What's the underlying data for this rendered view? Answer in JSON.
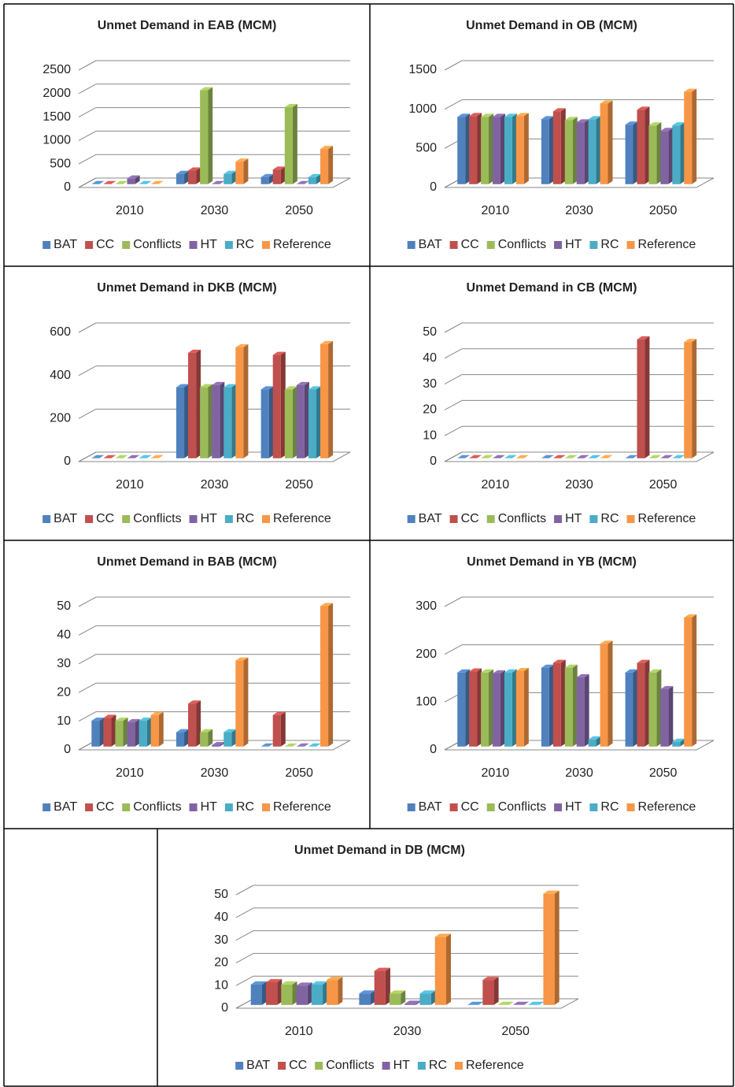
{
  "chart_data": [
    {
      "type": "bar",
      "title": "Unmet Demand in EAB (MCM)",
      "categories": [
        "2010",
        "2030",
        "2050"
      ],
      "ylim": [
        0,
        2500
      ],
      "yticks": [
        0,
        500,
        1000,
        1500,
        2000,
        2500
      ],
      "legend": "bottom",
      "series": [
        {
          "name": "BAT",
          "color": "#4f81bd",
          "values": [
            0,
            220,
            150
          ]
        },
        {
          "name": "CC",
          "color": "#c0504d",
          "values": [
            0,
            290,
            310
          ]
        },
        {
          "name": "Conflicts",
          "color": "#9bbb59",
          "values": [
            0,
            2000,
            1640
          ]
        },
        {
          "name": "HT",
          "color": "#8064a2",
          "values": [
            120,
            0,
            0
          ]
        },
        {
          "name": "RC",
          "color": "#4bacc6",
          "values": [
            0,
            220,
            150
          ]
        },
        {
          "name": "Reference",
          "color": "#f79646",
          "values": [
            0,
            480,
            750
          ]
        }
      ]
    },
    {
      "type": "bar",
      "title": "Unmet Demand in OB (MCM)",
      "categories": [
        "2010",
        "2030",
        "2050"
      ],
      "ylim": [
        0,
        1500
      ],
      "yticks": [
        0,
        500,
        1000,
        1500
      ],
      "legend": "bottom",
      "series": [
        {
          "name": "BAT",
          "color": "#4f81bd",
          "values": [
            860,
            830,
            760
          ]
        },
        {
          "name": "CC",
          "color": "#c0504d",
          "values": [
            870,
            930,
            950
          ]
        },
        {
          "name": "Conflicts",
          "color": "#9bbb59",
          "values": [
            860,
            820,
            750
          ]
        },
        {
          "name": "HT",
          "color": "#8064a2",
          "values": [
            860,
            790,
            680
          ]
        },
        {
          "name": "RC",
          "color": "#4bacc6",
          "values": [
            860,
            830,
            750
          ]
        },
        {
          "name": "Reference",
          "color": "#f79646",
          "values": [
            870,
            1030,
            1180
          ]
        }
      ]
    },
    {
      "type": "bar",
      "title": "Unmet Demand in DKB (MCM)",
      "categories": [
        "2010",
        "2030",
        "2050"
      ],
      "ylim": [
        0,
        600
      ],
      "yticks": [
        0,
        200,
        400,
        600
      ],
      "legend": "bottom",
      "series": [
        {
          "name": "BAT",
          "color": "#4f81bd",
          "values": [
            0,
            330,
            320
          ]
        },
        {
          "name": "CC",
          "color": "#c0504d",
          "values": [
            0,
            490,
            480
          ]
        },
        {
          "name": "Conflicts",
          "color": "#9bbb59",
          "values": [
            0,
            330,
            320
          ]
        },
        {
          "name": "HT",
          "color": "#8064a2",
          "values": [
            0,
            340,
            340
          ]
        },
        {
          "name": "RC",
          "color": "#4bacc6",
          "values": [
            0,
            330,
            320
          ]
        },
        {
          "name": "Reference",
          "color": "#f79646",
          "values": [
            0,
            515,
            530
          ]
        }
      ]
    },
    {
      "type": "bar",
      "title": "Unmet Demand in CB (MCM)",
      "categories": [
        "2010",
        "2030",
        "2050"
      ],
      "ylim": [
        0,
        50
      ],
      "yticks": [
        0,
        10,
        20,
        30,
        40,
        50
      ],
      "legend": "bottom",
      "series": [
        {
          "name": "BAT",
          "color": "#4f81bd",
          "values": [
            0,
            0,
            0
          ]
        },
        {
          "name": "CC",
          "color": "#c0504d",
          "values": [
            0,
            0,
            46
          ]
        },
        {
          "name": "Conflicts",
          "color": "#9bbb59",
          "values": [
            0,
            0,
            0
          ]
        },
        {
          "name": "HT",
          "color": "#8064a2",
          "values": [
            0,
            0,
            0
          ]
        },
        {
          "name": "RC",
          "color": "#4bacc6",
          "values": [
            0,
            0,
            0
          ]
        },
        {
          "name": "Reference",
          "color": "#f79646",
          "values": [
            0,
            0,
            45
          ]
        }
      ]
    },
    {
      "type": "bar",
      "title": "Unmet Demand in BAB (MCM)",
      "categories": [
        "2010",
        "2030",
        "2050"
      ],
      "ylim": [
        0,
        50
      ],
      "yticks": [
        0,
        10,
        20,
        30,
        40,
        50
      ],
      "legend": "bottom",
      "series": [
        {
          "name": "BAT",
          "color": "#4f81bd",
          "values": [
            9,
            5,
            0
          ]
        },
        {
          "name": "CC",
          "color": "#c0504d",
          "values": [
            10,
            15,
            11
          ]
        },
        {
          "name": "Conflicts",
          "color": "#9bbb59",
          "values": [
            9,
            5,
            0
          ]
        },
        {
          "name": "HT",
          "color": "#8064a2",
          "values": [
            8.5,
            0.5,
            0
          ]
        },
        {
          "name": "RC",
          "color": "#4bacc6",
          "values": [
            9,
            5,
            0
          ]
        },
        {
          "name": "Reference",
          "color": "#f79646",
          "values": [
            11,
            30,
            49
          ]
        }
      ]
    },
    {
      "type": "bar",
      "title": "Unmet Demand in YB (MCM)",
      "categories": [
        "2010",
        "2030",
        "2050"
      ],
      "ylim": [
        0,
        300
      ],
      "yticks": [
        0,
        100,
        200,
        300
      ],
      "legend": "bottom",
      "series": [
        {
          "name": "BAT",
          "color": "#4f81bd",
          "values": [
            155,
            165,
            155
          ]
        },
        {
          "name": "CC",
          "color": "#c0504d",
          "values": [
            157,
            175,
            175
          ]
        },
        {
          "name": "Conflicts",
          "color": "#9bbb59",
          "values": [
            155,
            165,
            155
          ]
        },
        {
          "name": "HT",
          "color": "#8064a2",
          "values": [
            153,
            145,
            120
          ]
        },
        {
          "name": "RC",
          "color": "#4bacc6",
          "values": [
            155,
            15,
            10
          ]
        },
        {
          "name": "Reference",
          "color": "#f79646",
          "values": [
            158,
            215,
            270
          ]
        }
      ]
    },
    {
      "type": "bar",
      "title": "Unmet Demand in DB (MCM)",
      "categories": [
        "2010",
        "2030",
        "2050"
      ],
      "ylim": [
        0,
        50
      ],
      "yticks": [
        0,
        10,
        20,
        30,
        40,
        50
      ],
      "legend": "bottom",
      "series": [
        {
          "name": "BAT",
          "color": "#4f81bd",
          "values": [
            9,
            5,
            0
          ]
        },
        {
          "name": "CC",
          "color": "#c0504d",
          "values": [
            10,
            15,
            11
          ]
        },
        {
          "name": "Conflicts",
          "color": "#9bbb59",
          "values": [
            9,
            5,
            0
          ]
        },
        {
          "name": "HT",
          "color": "#8064a2",
          "values": [
            8.5,
            0.5,
            0
          ]
        },
        {
          "name": "RC",
          "color": "#4bacc6",
          "values": [
            9,
            5,
            0
          ]
        },
        {
          "name": "Reference",
          "color": "#f79646",
          "values": [
            11,
            30,
            49
          ]
        }
      ]
    }
  ]
}
